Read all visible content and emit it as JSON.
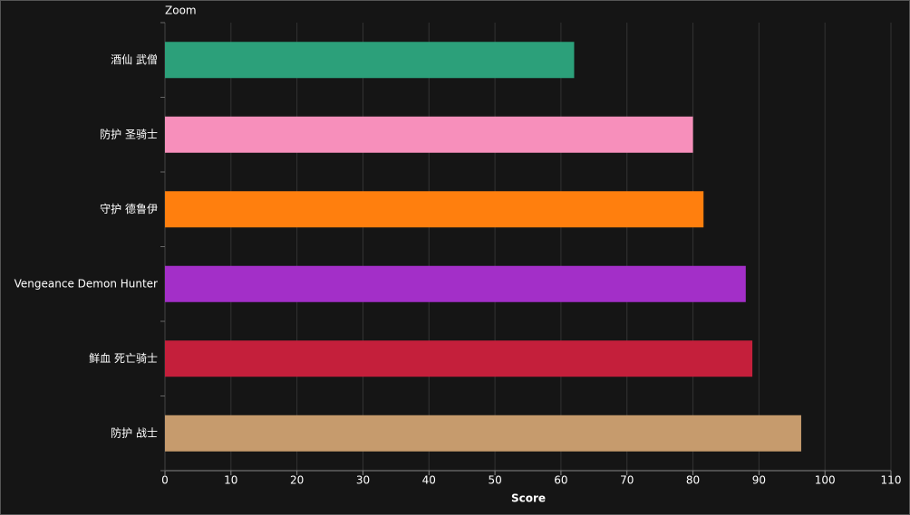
{
  "chart_data": {
    "type": "bar",
    "orientation": "horizontal",
    "title": "Zoom",
    "x_label": "Score",
    "categories": [
      "酒仙 武僧",
      "防护 圣骑士",
      "守护 德鲁伊",
      "Vengeance Demon Hunter",
      "鲜血 死亡骑士",
      "防护 战士"
    ],
    "values": [
      62,
      80,
      81.6,
      88,
      89,
      96.4
    ],
    "colors": [
      "#2ca07a",
      "#f78fbb",
      "#ff7f0e",
      "#a32fc8",
      "#c41f3b",
      "#c69b6d"
    ],
    "xlim": [
      0,
      110
    ],
    "xticks": [
      0,
      10,
      20,
      30,
      40,
      50,
      60,
      70,
      80,
      90,
      100,
      110
    ],
    "grid": true
  }
}
